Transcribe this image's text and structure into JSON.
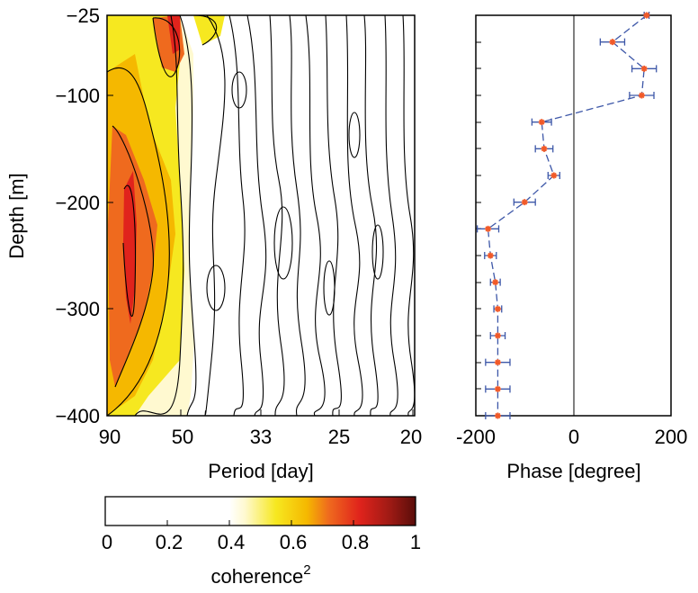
{
  "chart_data": [
    {
      "type": "heatmap",
      "title": "",
      "xlabel": "Period [day]",
      "ylabel": "Depth [m]",
      "x_ticks": [
        "90",
        "50",
        "33",
        "25",
        "20"
      ],
      "y_ticks": [
        "−25",
        "−100",
        "−200",
        "−300",
        "−400"
      ],
      "ylim": [
        -400,
        -25
      ],
      "description_of_values": "coherence squared vs period and depth; highest (~0.8-0.9) near period 60-90 day at depth -200 to -300 m",
      "colorbar": {
        "label": "coherence",
        "label_superscript": "2",
        "ticks": [
          "0",
          "0.2",
          "0.4",
          "0.6",
          "0.8",
          "1"
        ],
        "range": [
          0,
          1
        ],
        "colors": [
          "#ffffff",
          "#ffffff",
          "#fff9d0",
          "#f6e820",
          "#f5b800",
          "#ef6a1e",
          "#e0231c",
          "#9c1a14",
          "#5a0d0a"
        ]
      }
    },
    {
      "type": "scatter",
      "title": "",
      "xlabel": "Phase [degree]",
      "ylabel": "",
      "x_ticks": [
        "-200",
        "0",
        "200"
      ],
      "xlim": [
        -200,
        200
      ],
      "ylim": [
        -400,
        -25
      ],
      "series": [
        {
          "points": [
            {
              "depth": -25,
              "phase": 150,
              "err": 5
            },
            {
              "depth": -50,
              "phase": 80,
              "err": 25
            },
            {
              "depth": -75,
              "phase": 145,
              "err": 25
            },
            {
              "depth": -100,
              "phase": 140,
              "err": 25
            },
            {
              "depth": -125,
              "phase": -65,
              "err": 20
            },
            {
              "depth": -150,
              "phase": -60,
              "err": 18
            },
            {
              "depth": -175,
              "phase": -40,
              "err": 12
            },
            {
              "depth": -200,
              "phase": -100,
              "err": 22
            },
            {
              "depth": -225,
              "phase": -175,
              "err": 22
            },
            {
              "depth": -250,
              "phase": -170,
              "err": 12
            },
            {
              "depth": -275,
              "phase": -160,
              "err": 10
            },
            {
              "depth": -300,
              "phase": -155,
              "err": 8
            },
            {
              "depth": -325,
              "phase": -155,
              "err": 15
            },
            {
              "depth": -350,
              "phase": -155,
              "err": 25
            },
            {
              "depth": -375,
              "phase": -155,
              "err": 25
            },
            {
              "depth": -400,
              "phase": -155,
              "err": 25
            }
          ]
        }
      ],
      "colors": {
        "line": "#3d57a8",
        "marker": "#f15a29"
      }
    }
  ]
}
